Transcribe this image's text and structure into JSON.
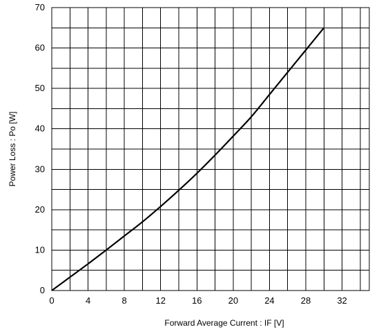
{
  "chart_data": {
    "type": "line",
    "title": "",
    "xlabel": "Forward Average Current : IF [V]",
    "ylabel": "Power Loss : Po [W]",
    "xlim": [
      0,
      35
    ],
    "ylim": [
      0,
      70
    ],
    "x_ticks": [
      0,
      4,
      8,
      12,
      16,
      20,
      24,
      28,
      32
    ],
    "y_ticks": [
      0,
      10,
      20,
      30,
      40,
      50,
      60,
      70
    ],
    "x_grid_step": 2,
    "y_grid_step": 5,
    "grid": true,
    "legend": "none",
    "series": [
      {
        "x": [
          0,
          2,
          4,
          6,
          8,
          10,
          12,
          14,
          16,
          18,
          20,
          22,
          24,
          26,
          28,
          30
        ],
        "y": [
          0,
          3.3,
          6.6,
          10.0,
          13.5,
          17.0,
          20.8,
          24.8,
          29.0,
          33.5,
          38.2,
          43.0,
          48.5,
          54.0,
          59.5,
          65.0
        ]
      }
    ]
  }
}
